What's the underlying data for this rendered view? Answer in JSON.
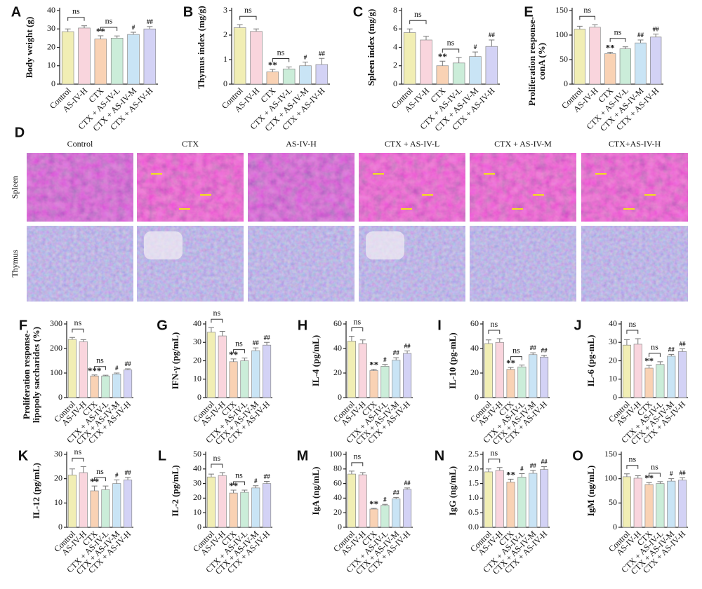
{
  "chart_data": [
    {
      "panel": "A",
      "type": "bar",
      "ylabel": "Body weight (g)",
      "categories": [
        "Control",
        "AS-IV-H",
        "CTX",
        "CTX + AS-IV-L",
        "CTX + AS-IV-M",
        "CTX + AS-IV-H"
      ],
      "values": [
        28.5,
        30.5,
        24.5,
        25,
        27,
        30
      ],
      "errors": [
        1.5,
        1.2,
        1.8,
        1.2,
        1.2,
        1.3
      ],
      "colors": [
        "#f1eeb4",
        "#f9d5dd",
        "#f9d2b4",
        "#cbedd9",
        "#c9e4f5",
        "#d3d2f5"
      ],
      "ylim": [
        0,
        40
      ],
      "yticks": [
        0,
        10,
        20,
        30,
        40
      ],
      "significance": [
        null,
        null,
        "**",
        null,
        "#",
        "##"
      ],
      "brackets": [
        {
          "between": [
            "Control",
            "AS-IV-H"
          ],
          "label": "ns"
        },
        {
          "between": [
            "CTX",
            "CTX + AS-IV-L"
          ],
          "label": "ns"
        }
      ]
    },
    {
      "panel": "B",
      "type": "bar",
      "ylabel": "Thymus index (mg/g)",
      "categories": [
        "Control",
        "AS-IV-H",
        "CTX",
        "CTX + AS-IV-L",
        "CTX + AS-IV-M",
        "CTX + AS-IV-H"
      ],
      "values": [
        2.3,
        2.15,
        0.5,
        0.62,
        0.75,
        0.8
      ],
      "errors": [
        0.12,
        0.1,
        0.1,
        0.08,
        0.15,
        0.25
      ],
      "colors": [
        "#f1eeb4",
        "#f9d5dd",
        "#f9d2b4",
        "#cbedd9",
        "#c9e4f5",
        "#d3d2f5"
      ],
      "ylim": [
        0,
        3
      ],
      "yticks": [
        0,
        1,
        2,
        3
      ],
      "significance": [
        null,
        null,
        "**",
        null,
        "#",
        "##"
      ],
      "brackets": [
        {
          "between": [
            "Control",
            "AS-IV-H"
          ],
          "label": "ns"
        },
        {
          "between": [
            "CTX",
            "CTX + AS-IV-L"
          ],
          "label": "ns"
        }
      ]
    },
    {
      "panel": "C",
      "type": "bar",
      "ylabel": "Spleen index (mg/g)",
      "categories": [
        "Control",
        "AS-IV-H",
        "CTX",
        "CTX + AS-IV-L",
        "CTX + AS-IV-M",
        "CTX + AS-IV-H"
      ],
      "values": [
        5.6,
        4.8,
        2.0,
        2.3,
        3.0,
        4.1
      ],
      "errors": [
        0.4,
        0.4,
        0.5,
        0.6,
        0.5,
        0.7
      ],
      "colors": [
        "#f1eeb4",
        "#f9d5dd",
        "#f9d2b4",
        "#cbedd9",
        "#c9e4f5",
        "#d3d2f5"
      ],
      "ylim": [
        0,
        8
      ],
      "yticks": [
        0,
        2,
        4,
        6,
        8
      ],
      "significance": [
        null,
        null,
        "**",
        null,
        "#",
        "##"
      ],
      "brackets": [
        {
          "between": [
            "Control",
            "AS-IV-H"
          ],
          "label": "ns"
        },
        {
          "between": [
            "CTX",
            "CTX + AS-IV-L"
          ],
          "label": "ns"
        }
      ]
    },
    {
      "panel": "E",
      "type": "bar",
      "ylabel": [
        "Proliferation response-",
        "conA (%)"
      ],
      "categories": [
        "Control",
        "AS-IV-H",
        "CTX",
        "CTX + AS-IV-L",
        "CTX + AS-IV-M",
        "CTX + AS-IV-H"
      ],
      "values": [
        112,
        116,
        62,
        72,
        84,
        96
      ],
      "errors": [
        6,
        5,
        3,
        4,
        6,
        6
      ],
      "colors": [
        "#f1eeb4",
        "#f9d5dd",
        "#f9d2b4",
        "#cbedd9",
        "#c9e4f5",
        "#d3d2f5"
      ],
      "ylim": [
        0,
        150
      ],
      "yticks": [
        0,
        50,
        100,
        150
      ],
      "significance": [
        null,
        null,
        "**",
        null,
        "##",
        "##"
      ],
      "brackets": [
        {
          "between": [
            "Control",
            "AS-IV-H"
          ],
          "label": "ns"
        },
        {
          "between": [
            "CTX",
            "CTX + AS-IV-L"
          ],
          "label": "ns"
        }
      ]
    },
    {
      "panel": "F",
      "type": "bar",
      "ylabel": [
        "Proliferation response-",
        "lipopoly saccharides (%)"
      ],
      "categories": [
        "Control",
        "AS-IV-H",
        "CTX",
        "CTX + AS-IV-L",
        "CTX + AS-IV-M",
        "CTX + AS-IV-H"
      ],
      "values": [
        237,
        228,
        88,
        88,
        96,
        113
      ],
      "errors": [
        8,
        8,
        4,
        3,
        4,
        4
      ],
      "colors": [
        "#f1eeb4",
        "#f9d5dd",
        "#f9d2b4",
        "#cbedd9",
        "#c9e4f5",
        "#d3d2f5"
      ],
      "ylim": [
        0,
        300
      ],
      "yticks": [
        0,
        100,
        200,
        300
      ],
      "significance": [
        null,
        null,
        "***",
        null,
        "#",
        "##"
      ],
      "brackets": [
        {
          "between": [
            "Control",
            "AS-IV-H"
          ],
          "label": "ns"
        },
        {
          "between": [
            "CTX",
            "CTX + AS-IV-L"
          ],
          "label": "ns"
        }
      ]
    },
    {
      "panel": "G",
      "type": "bar",
      "ylabel": "IFN-γ (pg/mL)",
      "categories": [
        "Control",
        "AS-IV-H",
        "CTX",
        "CTX + AS-IV-L",
        "CTX + AS-IV-M",
        "CTX + AS-IV-H"
      ],
      "values": [
        35.5,
        33.5,
        19.5,
        20,
        25.5,
        28.5
      ],
      "errors": [
        2.5,
        2.5,
        1.5,
        1.5,
        1.5,
        1.5
      ],
      "colors": [
        "#f1eeb4",
        "#f9d5dd",
        "#f9d2b4",
        "#cbedd9",
        "#c9e4f5",
        "#d3d2f5"
      ],
      "ylim": [
        0,
        40
      ],
      "yticks": [
        0,
        10,
        20,
        30,
        40
      ],
      "significance": [
        null,
        null,
        "**",
        null,
        "##",
        "##"
      ],
      "brackets": [
        {
          "between": [
            "Control",
            "AS-IV-H"
          ],
          "label": "ns"
        },
        {
          "between": [
            "CTX",
            "CTX + AS-IV-L"
          ],
          "label": "ns"
        }
      ]
    },
    {
      "panel": "H",
      "type": "bar",
      "ylabel": "IL-4 (pg/mL)",
      "categories": [
        "Control",
        "AS-IV-H",
        "CTX",
        "CTX + AS-IV-L",
        "CTX + AS-IV-M",
        "CTX + AS-IV-H"
      ],
      "values": [
        46,
        44,
        22,
        25.5,
        30.5,
        36
      ],
      "errors": [
        4,
        3,
        1,
        1.5,
        2,
        2
      ],
      "colors": [
        "#f1eeb4",
        "#f9d5dd",
        "#f9d2b4",
        "#cbedd9",
        "#c9e4f5",
        "#d3d2f5"
      ],
      "ylim": [
        0,
        60
      ],
      "yticks": [
        0,
        20,
        40,
        60
      ],
      "significance": [
        null,
        null,
        "**",
        "#",
        "##",
        "##"
      ],
      "brackets": [
        {
          "between": [
            "Control",
            "AS-IV-H"
          ],
          "label": "ns"
        }
      ]
    },
    {
      "panel": "I",
      "type": "bar",
      "ylabel": "IL-10 (pg-mL)",
      "categories": [
        "Control",
        "AS-IV-H",
        "CTX",
        "CTX + AS-IV-L",
        "CTX + AS-IV-M",
        "CTX + AS-IV-H"
      ],
      "values": [
        44,
        45,
        23,
        25,
        35,
        33
      ],
      "errors": [
        3,
        3,
        1.5,
        1.5,
        1.5,
        1.5
      ],
      "colors": [
        "#f1eeb4",
        "#f9d5dd",
        "#f9d2b4",
        "#cbedd9",
        "#c9e4f5",
        "#d3d2f5"
      ],
      "ylim": [
        0,
        60
      ],
      "yticks": [
        0,
        20,
        40,
        60
      ],
      "significance": [
        null,
        null,
        "**",
        null,
        "##",
        "##"
      ],
      "brackets": [
        {
          "between": [
            "Control",
            "AS-IV-H"
          ],
          "label": "ns"
        },
        {
          "between": [
            "CTX",
            "CTX + AS-IV-L"
          ],
          "label": "ns"
        }
      ]
    },
    {
      "panel": "J",
      "type": "bar",
      "ylabel": "IL-6 (pg-mL)",
      "categories": [
        "Control",
        "AS-IV-H",
        "CTX",
        "CTX + AS-IV-L",
        "CTX + AS-IV-M",
        "CTX + AS-IV-H"
      ],
      "values": [
        28.5,
        29,
        16,
        18,
        22.5,
        25
      ],
      "errors": [
        3,
        3,
        1.5,
        1.5,
        1,
        1.5
      ],
      "colors": [
        "#f1eeb4",
        "#f9d5dd",
        "#f9d2b4",
        "#cbedd9",
        "#c9e4f5",
        "#d3d2f5"
      ],
      "ylim": [
        0,
        40
      ],
      "yticks": [
        0,
        10,
        20,
        30,
        40
      ],
      "significance": [
        null,
        null,
        "**",
        null,
        "##",
        "##"
      ],
      "brackets": [
        {
          "between": [
            "Control",
            "AS-IV-H"
          ],
          "label": "ns"
        },
        {
          "between": [
            "CTX",
            "CTX + AS-IV-L"
          ],
          "label": "ns"
        }
      ]
    },
    {
      "panel": "K",
      "type": "bar",
      "ylabel": "IL-12 (pg/mL)",
      "categories": [
        "Control",
        "AS-IV-H",
        "CTX",
        "CTX + AS-IV-L",
        "CTX + AS-IV-M",
        "CTX + AS-IV-H"
      ],
      "values": [
        21.5,
        22.5,
        15,
        15.5,
        18,
        19.5
      ],
      "errors": [
        2.5,
        2.5,
        2,
        1.5,
        1.5,
        1
      ],
      "colors": [
        "#f1eeb4",
        "#f9d5dd",
        "#f9d2b4",
        "#cbedd9",
        "#c9e4f5",
        "#d3d2f5"
      ],
      "ylim": [
        0,
        30
      ],
      "yticks": [
        0,
        10,
        20,
        30
      ],
      "significance": [
        null,
        null,
        "**",
        null,
        "#",
        "##"
      ],
      "brackets": [
        {
          "between": [
            "Control",
            "AS-IV-H"
          ],
          "label": "ns"
        },
        {
          "between": [
            "CTX",
            "CTX + AS-IV-L"
          ],
          "label": "ns"
        }
      ]
    },
    {
      "panel": "L",
      "type": "bar",
      "ylabel": "IL-2 (pg/mL)",
      "categories": [
        "Control",
        "AS-IV-H",
        "CTX",
        "CTX + AS-IV-L",
        "CTX + AS-IV-M",
        "CTX + AS-IV-H"
      ],
      "values": [
        34.5,
        35.5,
        23.5,
        24,
        27,
        30
      ],
      "errors": [
        2,
        2,
        2,
        1.5,
        1.5,
        1.5
      ],
      "colors": [
        "#f1eeb4",
        "#f9d5dd",
        "#f9d2b4",
        "#cbedd9",
        "#c9e4f5",
        "#d3d2f5"
      ],
      "ylim": [
        0,
        50
      ],
      "yticks": [
        0,
        10,
        20,
        30,
        40,
        50
      ],
      "significance": [
        null,
        null,
        "**",
        null,
        "#",
        "##"
      ],
      "brackets": [
        {
          "between": [
            "Control",
            "AS-IV-H"
          ],
          "label": "ns"
        },
        {
          "between": [
            "CTX",
            "CTX + AS-IV-L"
          ],
          "label": "ns"
        }
      ]
    },
    {
      "panel": "M",
      "type": "bar",
      "ylabel": "IgA (ng/mL)",
      "categories": [
        "Control",
        "AS-IV-H",
        "CTX",
        "CTX + AS-IV-L",
        "CTX + AS-IV-M",
        "CTX + AS-IV-H"
      ],
      "values": [
        73,
        72,
        25,
        30,
        39,
        52
      ],
      "errors": [
        4,
        3,
        1,
        1.5,
        2,
        2
      ],
      "colors": [
        "#f1eeb4",
        "#f9d5dd",
        "#f9d2b4",
        "#cbedd9",
        "#c9e4f5",
        "#d3d2f5"
      ],
      "ylim": [
        0,
        100
      ],
      "yticks": [
        0,
        20,
        40,
        60,
        80,
        100
      ],
      "significance": [
        null,
        null,
        "**",
        "#",
        "##",
        "##"
      ],
      "brackets": [
        {
          "between": [
            "Control",
            "AS-IV-H"
          ],
          "label": "ns"
        }
      ]
    },
    {
      "panel": "N",
      "type": "bar",
      "ylabel": "IgG (ng/mL)",
      "categories": [
        "Control",
        "AS-IV-H",
        "CTX",
        "CTX + AS-IV-L",
        "CTX + AS-IV-M",
        "CTX + AS-IV-H"
      ],
      "values": [
        1.9,
        1.95,
        1.55,
        1.72,
        1.85,
        1.98
      ],
      "errors": [
        0.1,
        0.1,
        0.1,
        0.12,
        0.1,
        0.1
      ],
      "colors": [
        "#f1eeb4",
        "#f9d5dd",
        "#f9d2b4",
        "#cbedd9",
        "#c9e4f5",
        "#d3d2f5"
      ],
      "ylim": [
        0,
        2.5
      ],
      "yticks": [
        {
          "value": 0,
          "label": "0.0"
        },
        0.5,
        {
          "value": 1,
          "label": "1.0"
        },
        1.5,
        {
          "value": 2,
          "label": "2.0"
        },
        2.5
      ],
      "significance": [
        null,
        null,
        "**",
        "#",
        "##",
        "##"
      ],
      "brackets": [
        {
          "between": [
            "Control",
            "AS-IV-H"
          ],
          "label": "ns"
        }
      ]
    },
    {
      "panel": "O",
      "type": "bar",
      "ylabel": "IgM (ng/mL)",
      "categories": [
        "Control",
        "AS-IV-H",
        "CTX",
        "CTX + AS-IV-L",
        "CTX + AS-IV-M",
        "CTX + AS-IV-H"
      ],
      "values": [
        104,
        101,
        88,
        90,
        95,
        97
      ],
      "errors": [
        6,
        5,
        4,
        4,
        5,
        5
      ],
      "colors": [
        "#f1eeb4",
        "#f9d5dd",
        "#f9d2b4",
        "#cbedd9",
        "#c9e4f5",
        "#d3d2f5"
      ],
      "ylim": [
        0,
        150
      ],
      "yticks": [
        0,
        50,
        100,
        150
      ],
      "significance": [
        null,
        null,
        "**",
        null,
        "#",
        "##"
      ],
      "brackets": [
        {
          "between": [
            "Control",
            "AS-IV-H"
          ],
          "label": "ns"
        },
        {
          "between": [
            "CTX",
            "CTX + AS-IV-L"
          ],
          "label": "ns"
        }
      ]
    }
  ],
  "histology": {
    "panel": "D",
    "columns": [
      "Control",
      "CTX",
      "AS-IV-H",
      "CTX + AS-IV-L",
      "CTX + AS-IV-M",
      "CTX+AS-IV-H"
    ],
    "rows": [
      "Spleen",
      "Thymus"
    ]
  }
}
